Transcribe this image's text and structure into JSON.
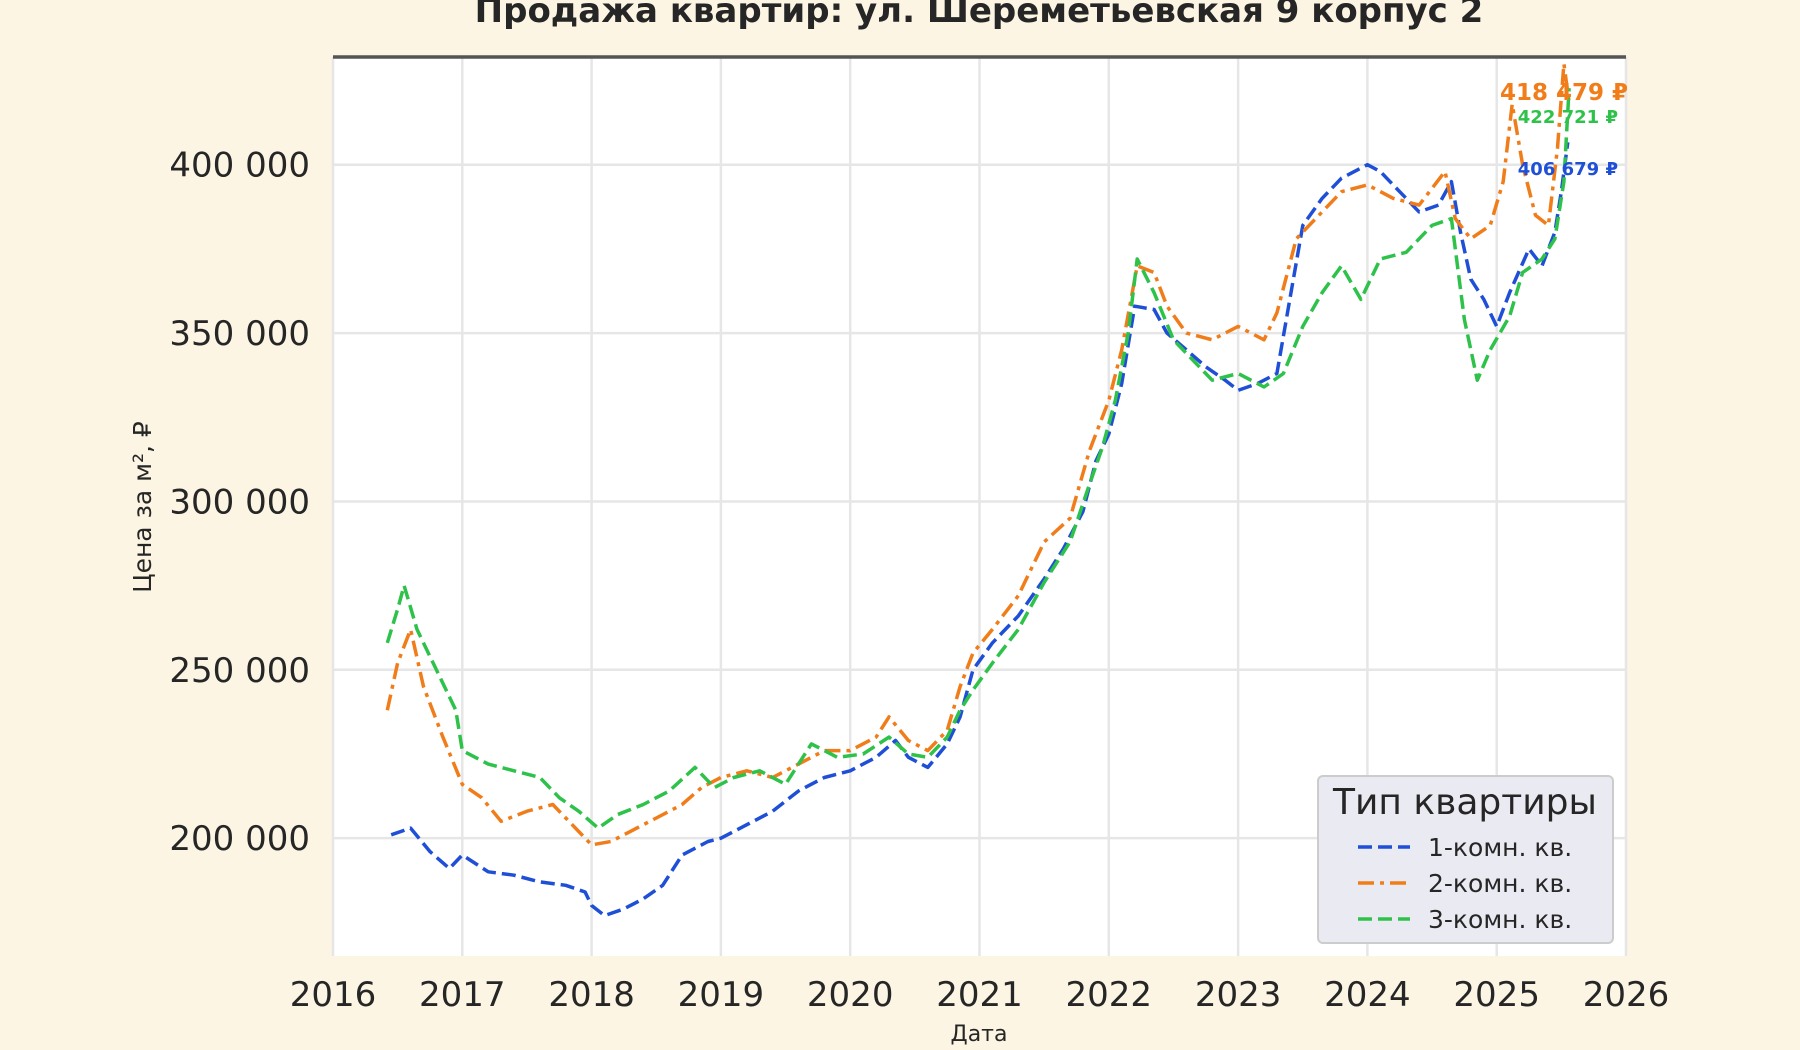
{
  "chart_data": {
    "type": "line",
    "title": "Продажа квартир: ул. Шереметьевская 9 корпус 2",
    "xlabel": "Дата",
    "ylabel": "Цена за м², ₽",
    "xlim": [
      2016.0,
      2026.0
    ],
    "ylim": [
      165000,
      432000
    ],
    "x_ticks": [
      "2016",
      "2017",
      "2018",
      "2019",
      "2020",
      "2021",
      "2022",
      "2023",
      "2024",
      "2025",
      "2026"
    ],
    "y_ticks": [
      {
        "value": 200000,
        "label": "200 000"
      },
      {
        "value": 250000,
        "label": "250 000"
      },
      {
        "value": 300000,
        "label": "300 000"
      },
      {
        "value": 350000,
        "label": "350 000"
      },
      {
        "value": 400000,
        "label": "400 000"
      }
    ],
    "grid": true,
    "legend": {
      "title": "Тип квартиры",
      "position": "bottom-right"
    },
    "series": [
      {
        "name": "1-комн. кв.",
        "color": "#1f4fd6",
        "style": "dashed",
        "end_label": "406 679 ₽",
        "points": [
          [
            2016.45,
            201000
          ],
          [
            2016.6,
            203000
          ],
          [
            2016.75,
            196000
          ],
          [
            2016.9,
            191000
          ],
          [
            2017.0,
            195000
          ],
          [
            2017.2,
            190000
          ],
          [
            2017.4,
            189000
          ],
          [
            2017.6,
            187000
          ],
          [
            2017.8,
            186000
          ],
          [
            2017.95,
            184000
          ],
          [
            2018.0,
            180000
          ],
          [
            2018.1,
            177000
          ],
          [
            2018.25,
            179000
          ],
          [
            2018.4,
            182000
          ],
          [
            2018.55,
            186000
          ],
          [
            2018.7,
            195000
          ],
          [
            2018.9,
            199000
          ],
          [
            2019.0,
            200000
          ],
          [
            2019.2,
            204000
          ],
          [
            2019.4,
            208000
          ],
          [
            2019.6,
            214000
          ],
          [
            2019.8,
            218000
          ],
          [
            2020.0,
            220000
          ],
          [
            2020.2,
            224000
          ],
          [
            2020.35,
            229000
          ],
          [
            2020.45,
            224000
          ],
          [
            2020.6,
            221000
          ],
          [
            2020.75,
            228000
          ],
          [
            2020.85,
            236000
          ],
          [
            2020.95,
            250000
          ],
          [
            2021.1,
            258000
          ],
          [
            2021.3,
            266000
          ],
          [
            2021.5,
            277000
          ],
          [
            2021.65,
            286000
          ],
          [
            2021.8,
            297000
          ],
          [
            2021.9,
            312000
          ],
          [
            2022.0,
            320000
          ],
          [
            2022.1,
            335000
          ],
          [
            2022.2,
            358000
          ],
          [
            2022.35,
            357000
          ],
          [
            2022.45,
            350000
          ],
          [
            2022.6,
            345000
          ],
          [
            2022.75,
            340000
          ],
          [
            2022.9,
            336000
          ],
          [
            2023.0,
            333000
          ],
          [
            2023.15,
            335000
          ],
          [
            2023.3,
            338000
          ],
          [
            2023.4,
            360000
          ],
          [
            2023.5,
            382000
          ],
          [
            2023.65,
            390000
          ],
          [
            2023.8,
            396000
          ],
          [
            2024.0,
            400000
          ],
          [
            2024.1,
            398000
          ],
          [
            2024.25,
            392000
          ],
          [
            2024.4,
            386000
          ],
          [
            2024.55,
            388000
          ],
          [
            2024.65,
            395000
          ],
          [
            2024.72,
            380000
          ],
          [
            2024.8,
            366000
          ],
          [
            2024.9,
            360000
          ],
          [
            2025.0,
            352000
          ],
          [
            2025.1,
            362000
          ],
          [
            2025.25,
            375000
          ],
          [
            2025.35,
            370000
          ],
          [
            2025.45,
            380000
          ],
          [
            2025.5,
            392000
          ],
          [
            2025.55,
            406679
          ]
        ]
      },
      {
        "name": "2-комн. кв.",
        "color": "#f07d1a",
        "style": "dashdot",
        "end_label": "418 479 ₽",
        "points": [
          [
            2016.42,
            238000
          ],
          [
            2016.5,
            252000
          ],
          [
            2016.6,
            262000
          ],
          [
            2016.7,
            245000
          ],
          [
            2016.85,
            230000
          ],
          [
            2017.0,
            216000
          ],
          [
            2017.15,
            212000
          ],
          [
            2017.3,
            205000
          ],
          [
            2017.5,
            208000
          ],
          [
            2017.7,
            210000
          ],
          [
            2017.85,
            204000
          ],
          [
            2018.0,
            198000
          ],
          [
            2018.15,
            199000
          ],
          [
            2018.3,
            202000
          ],
          [
            2018.5,
            206000
          ],
          [
            2018.7,
            210000
          ],
          [
            2018.85,
            215000
          ],
          [
            2019.0,
            218000
          ],
          [
            2019.2,
            220000
          ],
          [
            2019.4,
            218000
          ],
          [
            2019.6,
            222000
          ],
          [
            2019.8,
            226000
          ],
          [
            2020.0,
            226000
          ],
          [
            2020.2,
            230000
          ],
          [
            2020.3,
            236000
          ],
          [
            2020.45,
            229000
          ],
          [
            2020.6,
            226000
          ],
          [
            2020.75,
            232000
          ],
          [
            2020.85,
            245000
          ],
          [
            2020.95,
            255000
          ],
          [
            2021.1,
            262000
          ],
          [
            2021.3,
            272000
          ],
          [
            2021.5,
            288000
          ],
          [
            2021.7,
            295000
          ],
          [
            2021.85,
            315000
          ],
          [
            2022.0,
            330000
          ],
          [
            2022.1,
            345000
          ],
          [
            2022.22,
            370000
          ],
          [
            2022.35,
            368000
          ],
          [
            2022.45,
            358000
          ],
          [
            2022.6,
            350000
          ],
          [
            2022.8,
            348000
          ],
          [
            2023.0,
            352000
          ],
          [
            2023.2,
            348000
          ],
          [
            2023.3,
            356000
          ],
          [
            2023.45,
            378000
          ],
          [
            2023.6,
            384000
          ],
          [
            2023.8,
            392000
          ],
          [
            2024.0,
            394000
          ],
          [
            2024.2,
            390000
          ],
          [
            2024.4,
            388000
          ],
          [
            2024.6,
            398000
          ],
          [
            2024.68,
            384000
          ],
          [
            2024.8,
            378000
          ],
          [
            2024.95,
            382000
          ],
          [
            2025.05,
            395000
          ],
          [
            2025.12,
            418000
          ],
          [
            2025.2,
            400000
          ],
          [
            2025.3,
            385000
          ],
          [
            2025.4,
            382000
          ],
          [
            2025.47,
            405000
          ],
          [
            2025.52,
            430000
          ],
          [
            2025.56,
            418479
          ]
        ]
      },
      {
        "name": "3-комн. кв.",
        "color": "#2ec24a",
        "style": "dashed",
        "end_label": "422 721 ₽",
        "points": [
          [
            2016.42,
            258000
          ],
          [
            2016.5,
            268000
          ],
          [
            2016.55,
            275000
          ],
          [
            2016.65,
            262000
          ],
          [
            2016.8,
            250000
          ],
          [
            2016.95,
            238000
          ],
          [
            2017.0,
            226000
          ],
          [
            2017.2,
            222000
          ],
          [
            2017.4,
            220000
          ],
          [
            2017.6,
            218000
          ],
          [
            2017.75,
            212000
          ],
          [
            2017.9,
            208000
          ],
          [
            2018.05,
            203000
          ],
          [
            2018.2,
            207000
          ],
          [
            2018.4,
            210000
          ],
          [
            2018.6,
            214000
          ],
          [
            2018.8,
            221000
          ],
          [
            2018.95,
            215000
          ],
          [
            2019.1,
            218000
          ],
          [
            2019.3,
            220000
          ],
          [
            2019.5,
            216000
          ],
          [
            2019.7,
            228000
          ],
          [
            2019.9,
            224000
          ],
          [
            2020.1,
            225000
          ],
          [
            2020.3,
            230000
          ],
          [
            2020.45,
            225000
          ],
          [
            2020.6,
            224000
          ],
          [
            2020.75,
            230000
          ],
          [
            2020.85,
            238000
          ],
          [
            2020.95,
            244000
          ],
          [
            2021.1,
            252000
          ],
          [
            2021.3,
            262000
          ],
          [
            2021.5,
            276000
          ],
          [
            2021.7,
            288000
          ],
          [
            2021.85,
            305000
          ],
          [
            2021.95,
            316000
          ],
          [
            2022.05,
            330000
          ],
          [
            2022.15,
            350000
          ],
          [
            2022.22,
            372000
          ],
          [
            2022.35,
            362000
          ],
          [
            2022.5,
            348000
          ],
          [
            2022.65,
            342000
          ],
          [
            2022.8,
            336000
          ],
          [
            2023.0,
            338000
          ],
          [
            2023.2,
            334000
          ],
          [
            2023.35,
            338000
          ],
          [
            2023.5,
            352000
          ],
          [
            2023.65,
            362000
          ],
          [
            2023.8,
            370000
          ],
          [
            2023.95,
            360000
          ],
          [
            2024.1,
            372000
          ],
          [
            2024.3,
            374000
          ],
          [
            2024.5,
            382000
          ],
          [
            2024.65,
            384000
          ],
          [
            2024.75,
            354000
          ],
          [
            2024.85,
            336000
          ],
          [
            2024.95,
            345000
          ],
          [
            2025.1,
            355000
          ],
          [
            2025.2,
            368000
          ],
          [
            2025.35,
            372000
          ],
          [
            2025.45,
            378000
          ],
          [
            2025.52,
            395000
          ],
          [
            2025.56,
            422721
          ]
        ]
      }
    ]
  }
}
